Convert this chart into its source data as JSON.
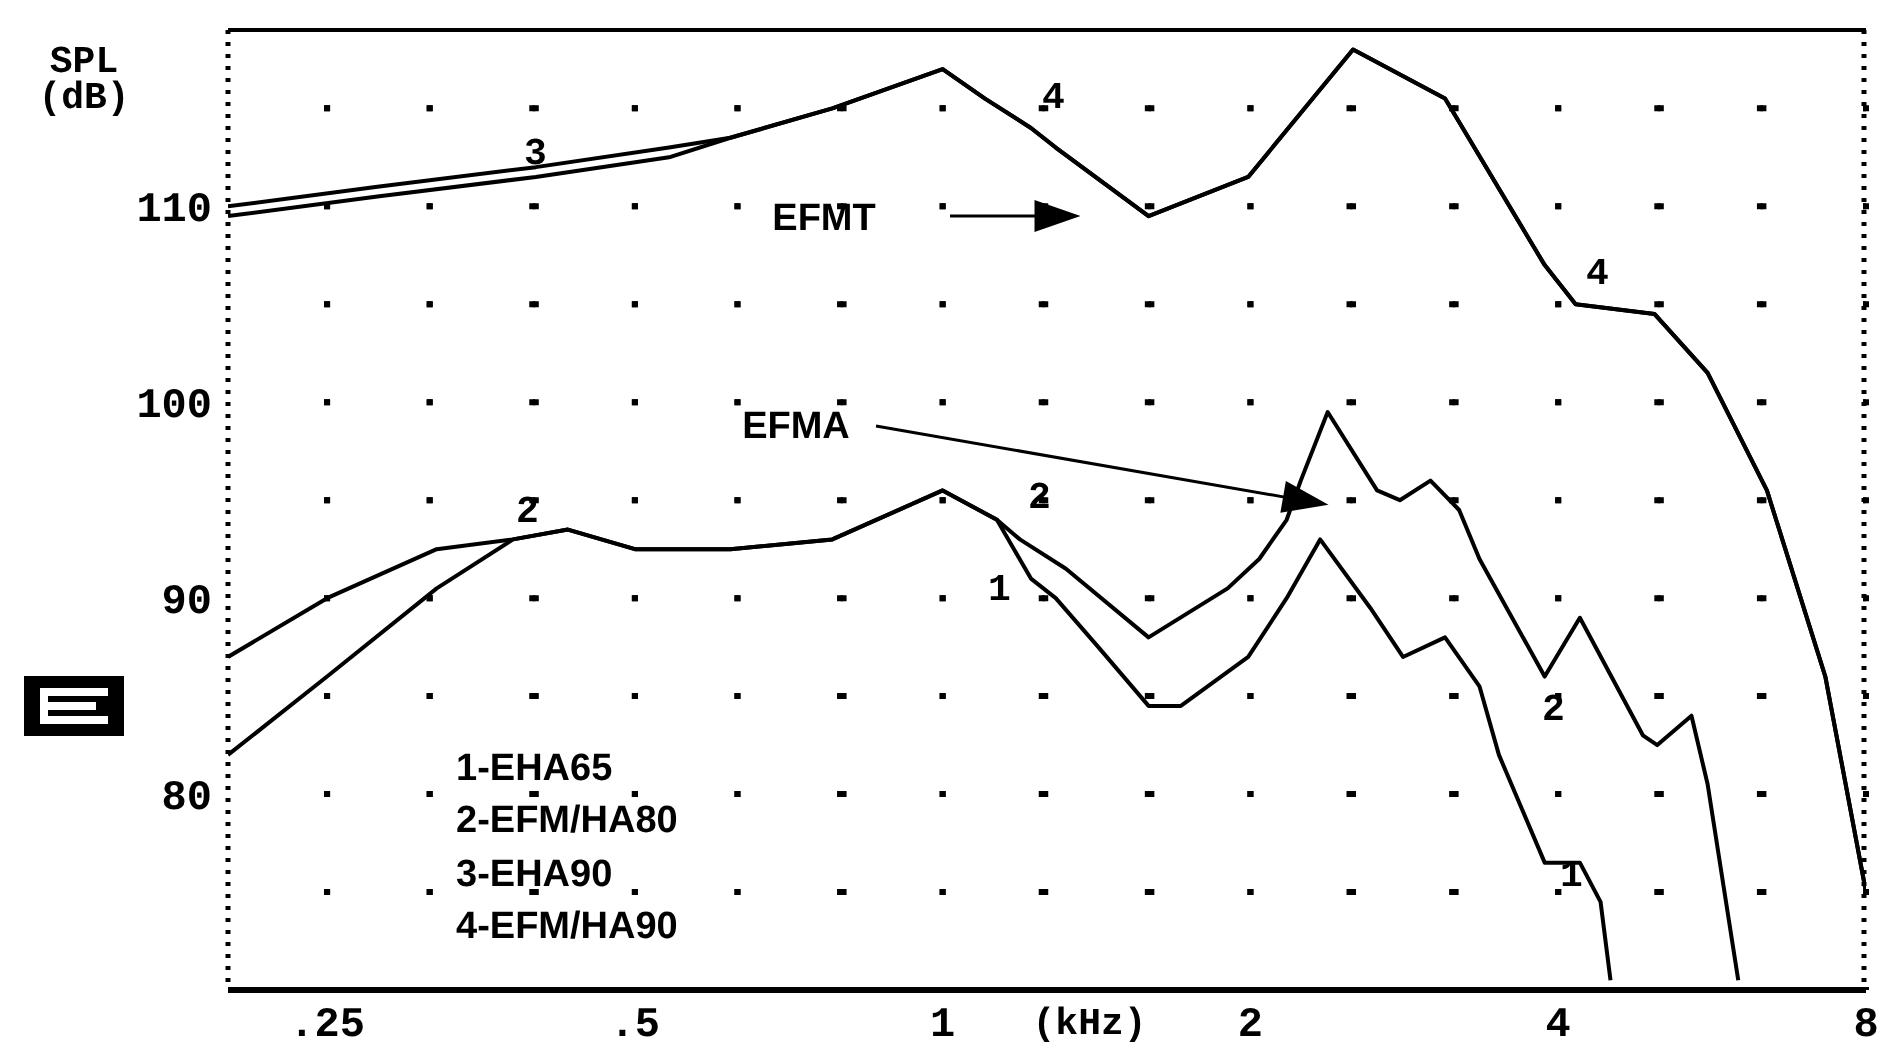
{
  "chart_data": {
    "type": "line",
    "ylabel": "SPL (dB)",
    "xlabel": "(kHz)",
    "log": "x",
    "xlim": [
      0.2,
      8
    ],
    "ylim": [
      70,
      119
    ],
    "xticks": [
      {
        "value": 0.25,
        "label": ".25"
      },
      {
        "value": 0.315,
        "label": null
      },
      {
        "value": 0.4,
        "label": null
      },
      {
        "value": 0.5,
        "label": ".5"
      },
      {
        "value": 0.63,
        "label": null
      },
      {
        "value": 0.8,
        "label": null
      },
      1,
      {
        "value": 1.25,
        "label": null
      },
      {
        "value": 1.6,
        "label": null
      },
      2,
      {
        "value": 2.5,
        "label": null
      },
      {
        "value": 3.15,
        "label": null
      },
      4,
      {
        "value": 5,
        "label": null
      },
      {
        "value": 6.3,
        "label": null
      },
      8
    ],
    "yticks": [
      {
        "value": 75,
        "label": null
      },
      80,
      {
        "value": 85,
        "label": null
      },
      90,
      {
        "value": 95,
        "label": null
      },
      100,
      {
        "value": 105,
        "label": null
      },
      110,
      {
        "value": 115,
        "label": null
      }
    ],
    "grid": true,
    "marker": "none",
    "line_style": "solid",
    "series": [
      {
        "color": "#000000",
        "x": [
          0.2,
          0.25,
          0.32,
          0.38,
          0.43,
          0.5,
          0.62,
          0.78,
          1.0,
          1.13,
          1.22,
          1.29,
          1.42,
          1.59,
          1.71,
          1.99,
          2.17,
          2.34,
          2.62,
          2.82,
          3.1,
          3.35,
          3.5,
          3.88,
          4.2,
          4.4,
          4.5
        ],
        "values": [
          87,
          90,
          92.5,
          93,
          93.5,
          92.5,
          92.5,
          93,
          95.5,
          94,
          91,
          90,
          87.5,
          84.5,
          84.5,
          87,
          90,
          93,
          89.5,
          87,
          88,
          85.5,
          82,
          76.5,
          76.5,
          74.5,
          70.5
        ]
      },
      {
        "color": "#000000",
        "x": [
          0.2,
          0.25,
          0.32,
          0.38,
          0.43,
          0.5,
          0.62,
          0.78,
          1.0,
          1.13,
          1.19,
          1.32,
          1.59,
          1.9,
          2.04,
          2.17,
          2.24,
          2.38,
          2.66,
          2.8,
          3.0,
          3.2,
          3.35,
          3.88,
          4.2,
          4.84,
          5.0,
          5.4,
          5.6,
          6.0
        ],
        "values": [
          82,
          86,
          90.5,
          93,
          93.5,
          92.5,
          92.5,
          93,
          95.5,
          94,
          93,
          91.5,
          88,
          90.5,
          92,
          94,
          96,
          99.5,
          95.5,
          95,
          96,
          94.5,
          92,
          86,
          89,
          83,
          82.5,
          84,
          80.5,
          70.5
        ]
      },
      {
        "color": "#000000",
        "x": [
          0.2,
          0.28,
          0.4,
          0.54,
          0.62,
          0.78,
          1.0,
          1.1,
          1.22,
          1.29,
          1.59,
          1.99,
          2.52,
          3.1,
          3.88,
          4.16,
          4.97,
          5.6,
          6.4,
          7.3,
          8
        ],
        "values": [
          109.5,
          110.5,
          111.5,
          112.5,
          113.5,
          115,
          117,
          115.5,
          114,
          113,
          109.5,
          111.5,
          118,
          115.5,
          107,
          105,
          104.5,
          101.5,
          95.5,
          86,
          75
        ]
      },
      {
        "color": "#000000",
        "x": [
          0.2,
          0.28,
          0.4,
          0.54,
          0.62,
          0.78,
          1.0,
          1.1,
          1.22,
          1.29,
          1.59,
          1.99,
          2.52,
          3.1,
          3.88,
          4.16,
          4.97,
          5.6,
          6.4,
          7.3,
          8
        ],
        "values": [
          110,
          111,
          112,
          113,
          113.5,
          115,
          117,
          115.5,
          114,
          113,
          109.5,
          111.5,
          118,
          115.5,
          107,
          105,
          104.5,
          101.5,
          95.5,
          86,
          75
        ]
      }
    ],
    "annotations": [
      "EFMT",
      "EFMA",
      "1-EHA65",
      "2-EFM/HA80",
      "3-EHA90",
      "4-EFM/HA90",
      "3",
      "4",
      "4",
      "2",
      "2",
      "1",
      "2",
      "1"
    ]
  }
}
